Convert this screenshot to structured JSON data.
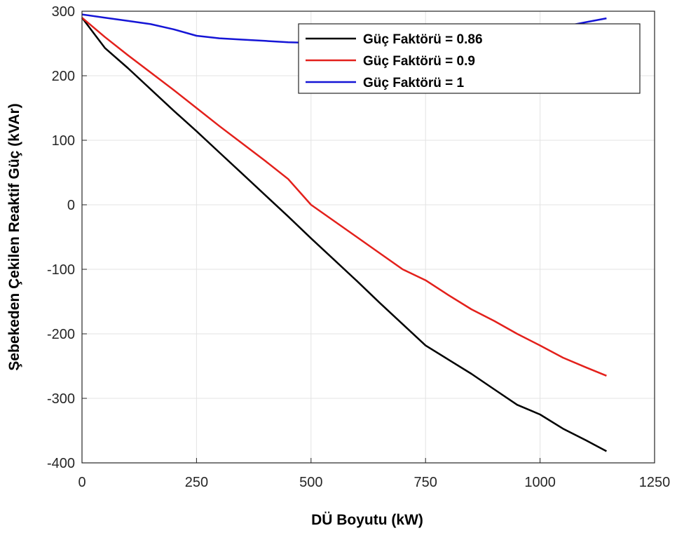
{
  "chart_data": {
    "type": "line",
    "title": "",
    "xlabel": "DÜ Boyutu (kW)",
    "ylabel": "Şebekeden Çekilen Reaktif Güç (kVAr)",
    "xlim": [
      0,
      1250
    ],
    "ylim": [
      -400,
      300
    ],
    "xticks": [
      0,
      250,
      500,
      750,
      1000,
      1250
    ],
    "yticks": [
      300,
      200,
      100,
      0,
      -100,
      -200,
      -300,
      -400
    ],
    "grid": true,
    "legend_position": "top-right",
    "series": [
      {
        "name": "Güç Faktörü = 0.86",
        "color": "#000000",
        "x": [
          0,
          50,
          100,
          150,
          200,
          250,
          300,
          350,
          400,
          450,
          500,
          550,
          600,
          650,
          700,
          750,
          800,
          850,
          900,
          950,
          1000,
          1050,
          1100,
          1145
        ],
        "y": [
          290,
          243,
          212,
          179,
          146,
          114,
          81,
          48,
          15,
          -18,
          -52,
          -85,
          -118,
          -152,
          -185,
          -218,
          -240,
          -262,
          -286,
          -310,
          -325,
          -347,
          -365,
          -382
        ]
      },
      {
        "name": "Güç Faktörü = 0.9",
        "color": "#e3201b",
        "x": [
          0,
          50,
          100,
          150,
          200,
          250,
          300,
          350,
          400,
          450,
          500,
          550,
          600,
          650,
          700,
          750,
          800,
          850,
          900,
          950,
          1000,
          1050,
          1100,
          1145
        ],
        "y": [
          290,
          260,
          232,
          205,
          178,
          150,
          122,
          95,
          68,
          40,
          0,
          -25,
          -50,
          -75,
          -100,
          -117,
          -140,
          -162,
          -180,
          -200,
          -218,
          -237,
          -252,
          -265
        ]
      },
      {
        "name": "Güç Faktörü = 1",
        "color": "#1515d6",
        "x": [
          0,
          50,
          100,
          150,
          200,
          250,
          300,
          350,
          400,
          450,
          500,
          550,
          600,
          650,
          700,
          750,
          800,
          850,
          900,
          950,
          1000,
          1050,
          1100,
          1145
        ],
        "y": [
          295,
          290,
          285,
          280,
          272,
          262,
          258,
          256,
          254,
          252,
          251,
          250,
          250,
          251,
          252,
          254,
          256,
          258,
          262,
          266,
          271,
          276,
          283,
          289
        ]
      }
    ]
  }
}
